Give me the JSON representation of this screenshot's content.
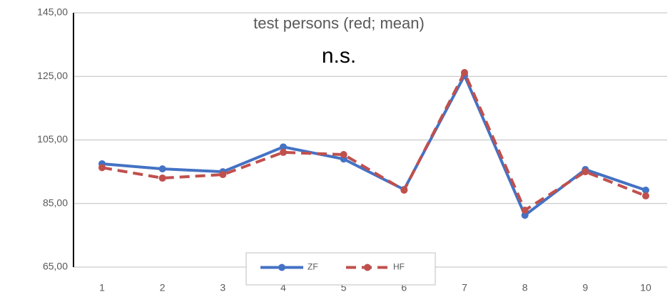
{
  "chart_data": {
    "type": "line",
    "title": "test persons (red; mean)",
    "annotation": "n.s.",
    "categories": [
      "1",
      "2",
      "3",
      "4",
      "5",
      "6",
      "7",
      "8",
      "9",
      "10"
    ],
    "series": [
      {
        "name": "ZF",
        "color": "#4472c4",
        "dashed": false,
        "values": [
          97.5,
          95.9,
          95.0,
          102.8,
          99.0,
          89.4,
          125.3,
          81.3,
          95.7,
          89.2
        ]
      },
      {
        "name": "HF",
        "color": "#c0504d",
        "dashed": true,
        "values": [
          96.3,
          93.0,
          94.1,
          101.1,
          100.4,
          89.2,
          126.2,
          82.9,
          95.0,
          87.4
        ]
      }
    ],
    "ylim": [
      65,
      145
    ],
    "yticks": [
      {
        "value": 65,
        "label": "65,00"
      },
      {
        "value": 85,
        "label": "85,00"
      },
      {
        "value": 105,
        "label": "105,00"
      },
      {
        "value": 125,
        "label": "125,00"
      },
      {
        "value": 145,
        "label": "145,00"
      }
    ],
    "grid": true,
    "legend": "bottom"
  }
}
